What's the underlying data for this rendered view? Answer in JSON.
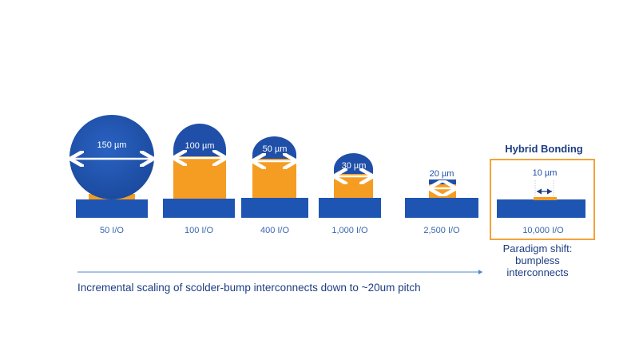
{
  "colors": {
    "bump_blue": "#1f4fa8",
    "copper_orange": "#f59d23",
    "substrate": "#1f55b2",
    "highlight_box": "#f2a33a",
    "text_blue": "#1d3d82"
  },
  "bumps": [
    {
      "dimension": "150 µm",
      "io": "50 I/O"
    },
    {
      "dimension": "100 µm",
      "io": "100 I/O"
    },
    {
      "dimension": "50 µm",
      "io": "400 I/O"
    },
    {
      "dimension": "30 µm",
      "io": "1,000 I/O"
    },
    {
      "dimension": "20 µm",
      "io": "2,500 I/O"
    }
  ],
  "hybrid": {
    "title": "Hybrid Bonding",
    "dimension": "10 µm",
    "io": "10,000 I/O",
    "note_lines": [
      "Paradigm shift:",
      "bumpless",
      "interconnects"
    ]
  },
  "caption": "Incremental scaling of scolder-bump interconnects down to ~20um pitch"
}
